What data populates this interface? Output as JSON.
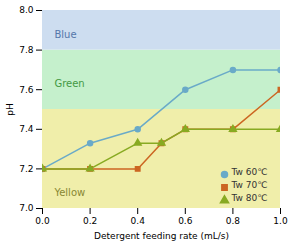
{
  "chart_data": {
    "type": "line",
    "xlabel": "Detergent feeding rate (mL/s)",
    "ylabel": "pH",
    "xlim": [
      0,
      1.0
    ],
    "ylim": [
      7.0,
      8.0
    ],
    "xticks": [
      {
        "value": 0,
        "label": "0.0"
      },
      0.2,
      0.4,
      0.6,
      0.8,
      {
        "value": 1.0,
        "label": "1.0"
      }
    ],
    "yticks": [
      {
        "value": 7.0,
        "label": "7.0"
      },
      7.2,
      7.4,
      7.6,
      7.8,
      {
        "value": 8.0,
        "label": "8.0"
      }
    ],
    "legend": "lower right",
    "zones": [
      {
        "ymin": 7.0,
        "ymax": 7.5,
        "color": "#f0eeaa"
      },
      {
        "ymin": 7.5,
        "ymax": 7.8,
        "color": "#c5f0cc"
      },
      {
        "ymin": 7.8,
        "ymax": 8.0,
        "color": "#cdddf0"
      }
    ],
    "series": [
      {
        "name": "Tw 60℃",
        "color": "#6aaac8",
        "marker": "circle",
        "x": [
          0,
          0.2,
          0.4,
          0.6,
          0.8,
          1.0
        ],
        "values": [
          7.2,
          7.33,
          7.4,
          7.6,
          7.7,
          7.7
        ]
      },
      {
        "name": "Tw 70℃",
        "color": "#cc6622",
        "marker": "square",
        "x": [
          0,
          0.2,
          0.4,
          0.5,
          0.6,
          0.8,
          1.0
        ],
        "values": [
          7.2,
          7.2,
          7.2,
          7.33,
          7.4,
          7.4,
          7.6
        ]
      },
      {
        "name": "Tw 80℃",
        "color": "#88aa22",
        "marker": "triangle",
        "x": [
          0,
          0.2,
          0.4,
          0.5,
          0.6,
          0.8,
          1.0
        ],
        "values": [
          7.2,
          7.2,
          7.33,
          7.33,
          7.4,
          7.4,
          7.4
        ]
      }
    ],
    "annotations": [
      {
        "text": "Blue",
        "x": 0.05,
        "y": 7.875,
        "color": "#5577aa"
      },
      {
        "text": "Green",
        "x": 0.05,
        "y": 7.63,
        "color": "#449944"
      },
      {
        "text": "Yellow",
        "x": 0.05,
        "y": 7.08,
        "color": "#888833"
      }
    ]
  }
}
